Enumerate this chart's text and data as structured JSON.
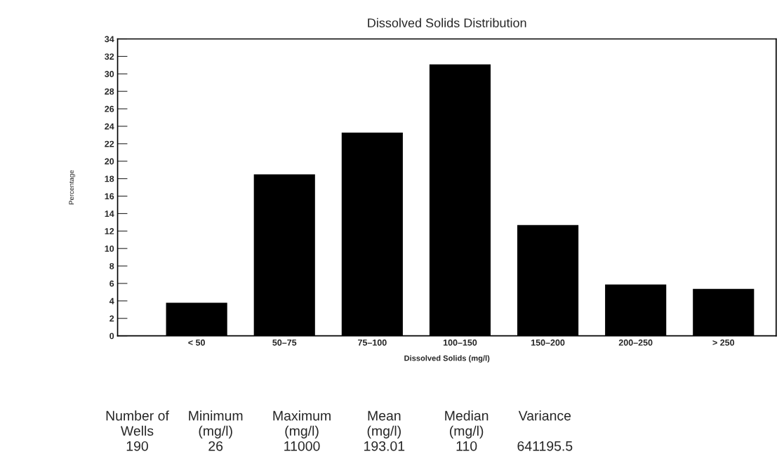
{
  "chart_data": {
    "type": "bar",
    "title": "Dissolved Solids Distribution",
    "xlabel": "Dissolved Solids (mg/l)",
    "ylabel": "Percentage",
    "categories": [
      "< 50",
      "50–75",
      "75–100",
      "100–150",
      "150–200",
      "200–250",
      "> 250"
    ],
    "values": [
      3.7,
      18.4,
      23.2,
      31.0,
      12.6,
      5.8,
      5.3
    ],
    "color": "#000000",
    "ylim": [
      0,
      34
    ],
    "yticks": [
      0,
      2,
      4,
      6,
      8,
      10,
      12,
      14,
      16,
      18,
      20,
      22,
      24,
      26,
      28,
      30,
      32,
      34
    ],
    "grid": false,
    "annotations": [
      "Number of\nWells\n190",
      "Minimum\n(mg/l)\n26",
      "Maximum\n(mg/l)\n11000",
      "Mean\n(mg/l)\n193.01",
      "Median\n(mg/l)\n110",
      "Variance\n\n641195.5"
    ]
  }
}
